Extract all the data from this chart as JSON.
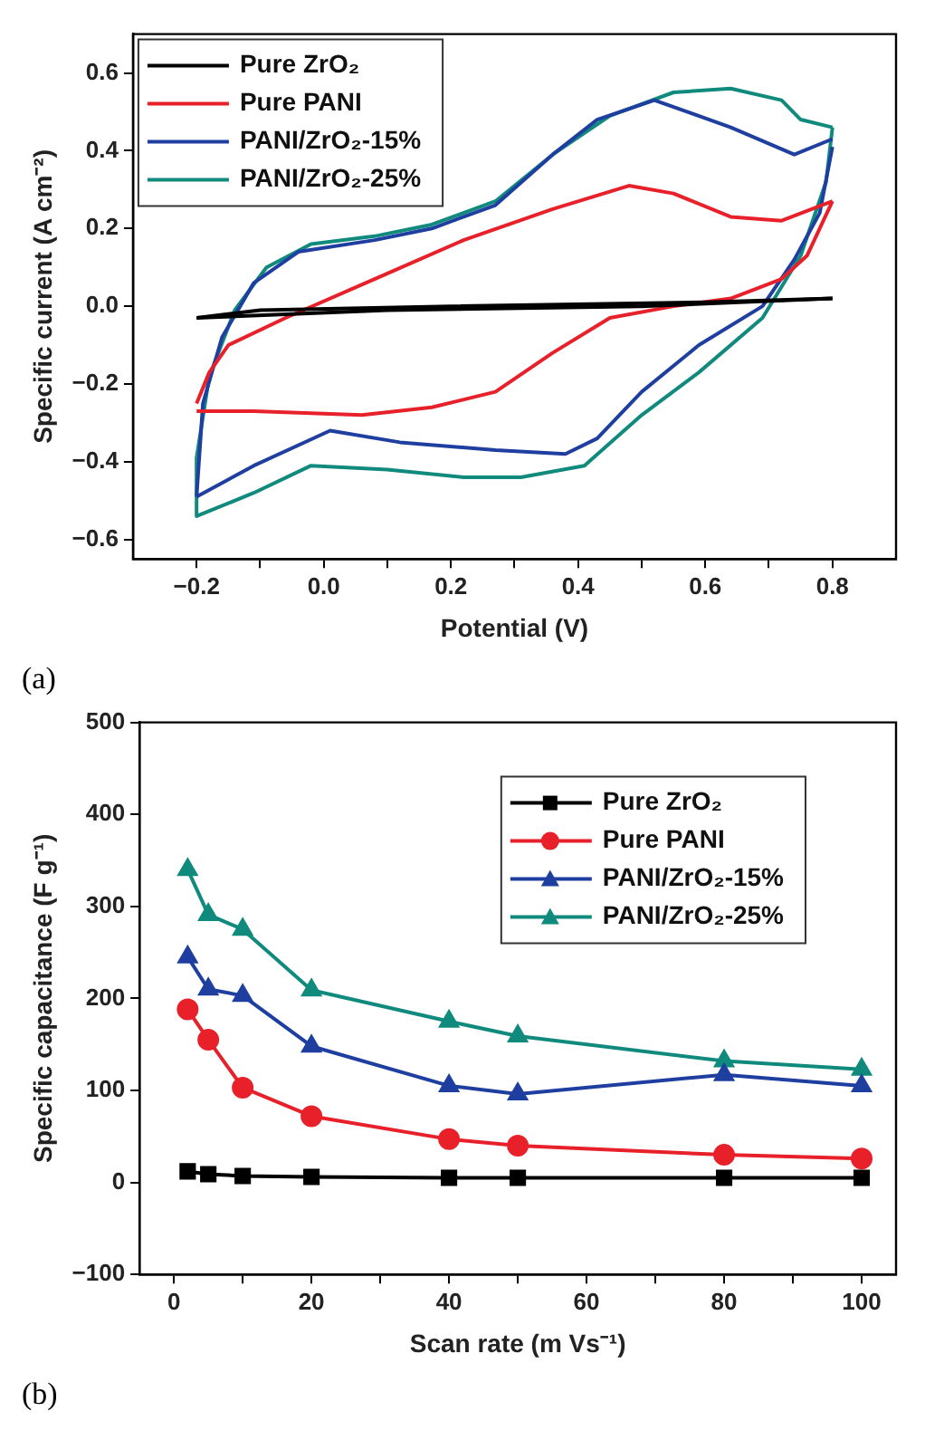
{
  "chart_data": [
    {
      "type": "line",
      "xlabel": "Potential (V)",
      "ylabel": "Specific current (A cm⁻²)",
      "annotations": [
        "(a)"
      ],
      "xlim": [
        -0.3,
        0.9
      ],
      "ylim": [
        -0.65,
        0.7
      ],
      "xticks": [
        {
          "value": -0.2,
          "label": "−0.2"
        },
        {
          "value": -0.1,
          "label": null
        },
        {
          "value": 0,
          "label": "0.0"
        },
        {
          "value": 0.1,
          "label": null
        },
        {
          "value": 0.2,
          "label": "0.2"
        },
        {
          "value": 0.3,
          "label": null
        },
        {
          "value": 0.4,
          "label": "0.4"
        },
        {
          "value": 0.5,
          "label": null
        },
        {
          "value": 0.6,
          "label": "0.6"
        },
        {
          "value": 0.7,
          "label": null
        },
        {
          "value": 0.8,
          "label": "0.8"
        }
      ],
      "yticks": [
        {
          "value": -0.6,
          "label": "−0.6"
        },
        {
          "value": -0.4,
          "label": "−0.4"
        },
        {
          "value": -0.2,
          "label": "−0.2"
        },
        {
          "value": 0,
          "label": "0.0"
        },
        {
          "value": 0.2,
          "label": "0.2"
        },
        {
          "value": 0.4,
          "label": "0.4"
        },
        {
          "value": 0.6,
          "label": "0.6"
        }
      ],
      "grid": false,
      "legend": "top left",
      "marker": "none",
      "series": [
        {
          "name": "Pure ZrO₂",
          "color": "#000000",
          "x": [
            -0.2,
            -0.1,
            0.2,
            0.6,
            0.8
          ],
          "values": [
            -0.03,
            -0.01,
            0.0,
            0.01,
            0.02
          ]
        },
        {
          "color": "#000000",
          "x": [
            0.8,
            0.5,
            0.1,
            -0.2
          ],
          "values": [
            0.02,
            0.0,
            -0.01,
            -0.03
          ]
        },
        {
          "name": "Pure PANI",
          "color": "#e8202a",
          "x": [
            -0.2,
            -0.11,
            0.06,
            0.17,
            0.27,
            0.36,
            0.45,
            0.55,
            0.64,
            0.72,
            0.76,
            0.8
          ],
          "values": [
            -0.27,
            -0.27,
            -0.28,
            -0.26,
            -0.22,
            -0.12,
            -0.03,
            0.0,
            0.02,
            0.07,
            0.13,
            0.27
          ]
        },
        {
          "color": "#e8202a",
          "x": [
            0.8,
            0.72,
            0.64,
            0.55,
            0.48,
            0.36,
            0.22,
            0.08,
            -0.06,
            -0.15,
            -0.18,
            -0.2
          ],
          "values": [
            0.27,
            0.22,
            0.23,
            0.29,
            0.31,
            0.25,
            0.17,
            0.07,
            -0.03,
            -0.1,
            -0.17,
            -0.25
          ]
        },
        {
          "name": "PANI/ZrO₂-15%",
          "color": "#1f3fa0",
          "x": [
            -0.2,
            -0.11,
            0.01,
            0.12,
            0.27,
            0.38,
            0.43,
            0.5,
            0.59,
            0.69,
            0.74,
            0.78,
            0.8
          ],
          "values": [
            -0.49,
            -0.41,
            -0.32,
            -0.35,
            -0.37,
            -0.38,
            -0.34,
            -0.22,
            -0.1,
            0.0,
            0.12,
            0.24,
            0.41
          ]
        },
        {
          "color": "#1f3fa0",
          "x": [
            0.8,
            0.74,
            0.64,
            0.52,
            0.43,
            0.36,
            0.27,
            0.17,
            0.08,
            -0.04,
            -0.11,
            -0.16,
            -0.19,
            -0.2
          ],
          "values": [
            0.43,
            0.39,
            0.46,
            0.53,
            0.48,
            0.39,
            0.26,
            0.2,
            0.17,
            0.14,
            0.06,
            -0.08,
            -0.25,
            -0.49
          ]
        },
        {
          "name": "PANI/ZrO₂-25%",
          "color": "#118a7e",
          "x": [
            -0.2,
            -0.11,
            -0.02,
            0.1,
            0.22,
            0.31,
            0.41,
            0.5,
            0.59,
            0.69,
            0.75,
            0.79,
            0.8
          ],
          "values": [
            -0.54,
            -0.48,
            -0.41,
            -0.42,
            -0.44,
            -0.44,
            -0.41,
            -0.28,
            -0.17,
            -0.03,
            0.13,
            0.32,
            0.46
          ]
        },
        {
          "color": "#118a7e",
          "x": [
            0.8,
            0.75,
            0.72,
            0.64,
            0.55,
            0.45,
            0.36,
            0.27,
            0.17,
            0.08,
            -0.02,
            -0.09,
            -0.14,
            -0.18,
            -0.2,
            -0.2
          ],
          "values": [
            0.46,
            0.48,
            0.53,
            0.56,
            0.55,
            0.49,
            0.39,
            0.27,
            0.21,
            0.18,
            0.16,
            0.1,
            -0.01,
            -0.18,
            -0.39,
            -0.54
          ]
        }
      ]
    },
    {
      "type": "line",
      "xlabel": "Scan rate (m Vs⁻¹)",
      "ylabel": "Specific capacitance (F g⁻¹)",
      "annotations": [
        "(b)"
      ],
      "x": [
        2,
        5,
        10,
        20,
        40,
        50,
        80,
        100
      ],
      "xlim": [
        -5,
        105
      ],
      "ylim": [
        -100,
        500
      ],
      "xticks": [
        0,
        {
          "value": 10,
          "label": null
        },
        20,
        {
          "value": 30,
          "label": null
        },
        40,
        {
          "value": 50,
          "label": null
        },
        60,
        {
          "value": 70,
          "label": null
        },
        80,
        {
          "value": 90,
          "label": null
        },
        100
      ],
      "yticks": [
        {
          "value": -100,
          "label": "−100"
        },
        0,
        100,
        200,
        300,
        400,
        500
      ],
      "grid": false,
      "legend": "top right",
      "series": [
        {
          "name": "Pure ZrO₂",
          "color": "#000000",
          "marker": "square",
          "values": [
            12,
            9,
            7,
            6,
            5,
            5,
            5,
            5
          ]
        },
        {
          "name": "Pure PANI",
          "color": "#e8202a",
          "marker": "circle",
          "values": [
            188,
            155,
            103,
            72,
            47,
            40,
            30,
            26
          ]
        },
        {
          "name": "PANI/ZrO₂-15%",
          "color": "#1f3fa0",
          "marker": "triangle",
          "values": [
            245,
            210,
            203,
            148,
            105,
            96,
            117,
            105
          ]
        },
        {
          "name": "PANI/ZrO₂-25%",
          "color": "#118a7e",
          "marker": "triangle",
          "values": [
            340,
            291,
            275,
            209,
            175,
            159,
            132,
            123
          ]
        }
      ]
    }
  ]
}
